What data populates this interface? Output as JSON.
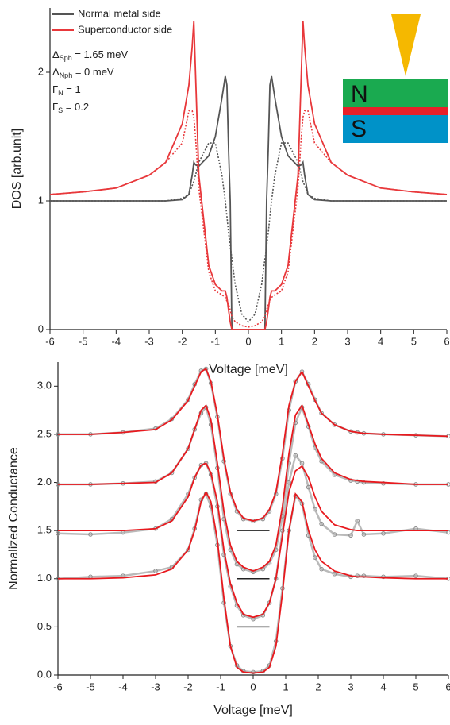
{
  "chart_data": [
    {
      "type": "line",
      "x_label": "Voltage [meV]",
      "y_label": "DOS [arb.unit]",
      "xlim": [
        -6,
        6
      ],
      "xticks": [
        -6,
        -5,
        -4,
        -3,
        -2,
        -1,
        0,
        1,
        2,
        3,
        4,
        5,
        6
      ],
      "ylim": [
        0,
        2.5
      ],
      "yticks": [
        0,
        1,
        2
      ],
      "x": [
        -6,
        -5,
        -4,
        -3,
        -2.5,
        -2,
        -1.8,
        -1.7,
        -1.65,
        -1.6,
        -1.5,
        -1.2,
        -1,
        -0.8,
        -0.7,
        -0.65,
        -0.6,
        -0.55,
        -0.5,
        -0.4,
        -0.2,
        0,
        0.2,
        0.4,
        0.5,
        0.55,
        0.6,
        0.65,
        0.7,
        0.8,
        1,
        1.2,
        1.5,
        1.6,
        1.65,
        1.7,
        1.8,
        2,
        2.5,
        3,
        4,
        5,
        6
      ],
      "series": [
        {
          "name": "Normal metal side",
          "color": "#555555",
          "values": [
            1,
            1,
            1,
            1,
            1,
            1.01,
            1.05,
            1.2,
            1.3,
            1.28,
            1.27,
            1.35,
            1.5,
            1.8,
            1.97,
            1.9,
            1.4,
            1.0,
            0,
            0,
            0,
            0,
            0,
            0,
            0,
            1.0,
            1.4,
            1.9,
            1.97,
            1.8,
            1.5,
            1.35,
            1.27,
            1.28,
            1.3,
            1.2,
            1.05,
            1.01,
            1,
            1,
            1,
            1,
            1
          ]
        },
        {
          "name": "Superconductor side",
          "color": "#e8383b",
          "values": [
            1.05,
            1.07,
            1.1,
            1.2,
            1.3,
            1.6,
            1.9,
            2.2,
            2.4,
            2.0,
            1.2,
            0.5,
            0.35,
            0.3,
            0.3,
            0.25,
            0.15,
            0.06,
            0,
            0,
            0,
            0,
            0,
            0,
            0,
            0.06,
            0.15,
            0.25,
            0.3,
            0.3,
            0.35,
            0.5,
            1.2,
            2.0,
            2.4,
            2.2,
            1.9,
            1.6,
            1.3,
            1.2,
            1.1,
            1.07,
            1.05
          ]
        },
        {
          "color": "#555555",
          "dash": true,
          "values": [
            1,
            1,
            1,
            1,
            1,
            1.02,
            1.05,
            1.12,
            1.15,
            1.2,
            1.3,
            1.45,
            1.45,
            1.2,
            1.0,
            0.88,
            0.75,
            0.65,
            0.55,
            0.35,
            0.12,
            0.06,
            0.12,
            0.35,
            0.55,
            0.65,
            0.75,
            0.88,
            1.0,
            1.2,
            1.45,
            1.45,
            1.3,
            1.2,
            1.15,
            1.12,
            1.05,
            1.02,
            1,
            1,
            1,
            1,
            1
          ]
        },
        {
          "color": "#e8383b",
          "dash": true,
          "values": [
            1.05,
            1.07,
            1.1,
            1.2,
            1.3,
            1.45,
            1.7,
            1.7,
            1.65,
            1.5,
            1.1,
            0.45,
            0.3,
            0.27,
            0.25,
            0.22,
            0.2,
            0.15,
            0.1,
            0.06,
            0.03,
            0.02,
            0.03,
            0.06,
            0.1,
            0.15,
            0.2,
            0.22,
            0.25,
            0.27,
            0.3,
            0.45,
            1.1,
            1.5,
            1.65,
            1.7,
            1.7,
            1.45,
            1.3,
            1.2,
            1.1,
            1.07,
            1.05
          ]
        }
      ],
      "annotations": [
        {
          "base": "Δ",
          "sub": "Sph",
          "rest": " = 1.65 meV"
        },
        {
          "base": "Δ",
          "sub": "Nph",
          "rest": " = 0 meV"
        },
        {
          "base": "Γ",
          "sub": "N",
          "rest": " = 1"
        },
        {
          "base": "Γ",
          "sub": "S",
          "rest": " = 0.2"
        }
      ],
      "inset_labels": [
        "N",
        "S"
      ]
    },
    {
      "type": "line",
      "x_label": "Voltage [meV]",
      "y_label": "Normalized Conductance",
      "xlim": [
        -6,
        6
      ],
      "xticks": [
        -6,
        -5,
        -4,
        -3,
        -2,
        -1,
        0,
        1,
        2,
        3,
        4,
        5,
        6
      ],
      "ylim": [
        0,
        3.25
      ],
      "yticks": [
        {
          "value": 0,
          "label": "0.0"
        },
        0.5,
        {
          "value": 1,
          "label": "1.0"
        },
        1.5,
        {
          "value": 2,
          "label": "2.0"
        },
        2.5,
        {
          "value": 3,
          "label": "3.0"
        }
      ],
      "x": [
        -6,
        -5,
        -4,
        -3,
        -2.5,
        -2,
        -1.8,
        -1.6,
        -1.45,
        -1.3,
        -1.1,
        -0.9,
        -0.7,
        -0.5,
        -0.3,
        0,
        0.3,
        0.5,
        0.7,
        0.9,
        1.1,
        1.3,
        1.5,
        1.7,
        1.9,
        2.1,
        2.5,
        3,
        3.2,
        3.4,
        4,
        5,
        6
      ],
      "series": [
        {
          "color": "#8c8c8c",
          "marker": "circle",
          "values": [
            1.0,
            1.02,
            1.03,
            1.08,
            1.12,
            1.3,
            1.52,
            1.82,
            1.88,
            1.75,
            1.35,
            0.75,
            0.3,
            0.1,
            0.04,
            0.03,
            0.04,
            0.1,
            0.35,
            0.9,
            1.5,
            1.86,
            1.78,
            1.45,
            1.22,
            1.1,
            1.05,
            1.02,
            1.03,
            1.03,
            1.02,
            1.03,
            1.0
          ]
        },
        {
          "color": "#e8191e",
          "values": [
            1.0,
            1.0,
            1.01,
            1.04,
            1.1,
            1.3,
            1.5,
            1.8,
            1.9,
            1.8,
            1.4,
            0.8,
            0.3,
            0.08,
            0.03,
            0.02,
            0.03,
            0.08,
            0.3,
            0.85,
            1.5,
            1.88,
            1.8,
            1.5,
            1.3,
            1.18,
            1.08,
            1.03,
            1.02,
            1.02,
            1.01,
            1.0,
            1.0
          ]
        },
        {
          "color": "#8c8c8c",
          "marker": "circle",
          "values": [
            1.47,
            1.46,
            1.48,
            1.52,
            1.62,
            1.88,
            2.05,
            2.18,
            2.2,
            2.08,
            1.75,
            1.25,
            0.92,
            0.72,
            0.62,
            0.58,
            0.62,
            0.75,
            1.0,
            1.5,
            2.0,
            2.28,
            2.2,
            1.95,
            1.72,
            1.57,
            1.46,
            1.45,
            1.6,
            1.46,
            1.47,
            1.52,
            1.48
          ]
        },
        {
          "color": "#e8191e",
          "values": [
            1.5,
            1.5,
            1.5,
            1.52,
            1.6,
            1.85,
            2.05,
            2.18,
            2.2,
            2.1,
            1.8,
            1.3,
            0.95,
            0.75,
            0.63,
            0.6,
            0.63,
            0.75,
            1.0,
            1.45,
            1.9,
            2.12,
            2.17,
            2.05,
            1.85,
            1.7,
            1.56,
            1.51,
            1.5,
            1.5,
            1.5,
            1.5,
            1.5
          ]
        },
        {
          "color": "#8c8c8c",
          "marker": "circle",
          "values": [
            1.98,
            1.98,
            1.99,
            2.01,
            2.1,
            2.35,
            2.55,
            2.72,
            2.78,
            2.6,
            2.15,
            1.62,
            1.3,
            1.15,
            1.1,
            1.07,
            1.1,
            1.16,
            1.3,
            1.65,
            2.2,
            2.62,
            2.78,
            2.58,
            2.36,
            2.22,
            2.08,
            2.02,
            2.01,
            2.0,
            1.99,
            1.98,
            1.98
          ]
        },
        {
          "color": "#e8191e",
          "values": [
            1.98,
            1.98,
            1.99,
            2.0,
            2.1,
            2.35,
            2.55,
            2.75,
            2.8,
            2.65,
            2.2,
            1.7,
            1.35,
            1.18,
            1.12,
            1.08,
            1.12,
            1.18,
            1.35,
            1.75,
            2.3,
            2.7,
            2.8,
            2.6,
            2.4,
            2.25,
            2.1,
            2.03,
            2.02,
            2.01,
            2.0,
            1.98,
            1.98
          ]
        },
        {
          "color": "#8c8c8c",
          "marker": "circle",
          "values": [
            2.5,
            2.5,
            2.52,
            2.56,
            2.66,
            2.86,
            3.02,
            3.16,
            3.18,
            3.03,
            2.68,
            2.22,
            1.88,
            1.7,
            1.62,
            1.6,
            1.62,
            1.7,
            1.88,
            2.25,
            2.75,
            3.05,
            3.15,
            3.02,
            2.86,
            2.72,
            2.6,
            2.53,
            2.52,
            2.51,
            2.5,
            2.49,
            2.48
          ]
        },
        {
          "color": "#e8191e",
          "values": [
            2.5,
            2.5,
            2.52,
            2.55,
            2.65,
            2.85,
            3.0,
            3.15,
            3.18,
            3.05,
            2.7,
            2.25,
            1.9,
            1.72,
            1.63,
            1.6,
            1.63,
            1.72,
            1.9,
            2.3,
            2.8,
            3.05,
            3.15,
            3.0,
            2.85,
            2.72,
            2.6,
            2.53,
            2.52,
            2.51,
            2.5,
            2.49,
            2.48
          ]
        }
      ],
      "hlines": [
        {
          "y": 1.5,
          "x": [
            -0.5,
            0.5
          ]
        },
        {
          "y": 1,
          "x": [
            -0.5,
            0.5
          ]
        },
        {
          "y": 0.5,
          "x": [
            -0.5,
            0.5
          ]
        }
      ]
    }
  ]
}
